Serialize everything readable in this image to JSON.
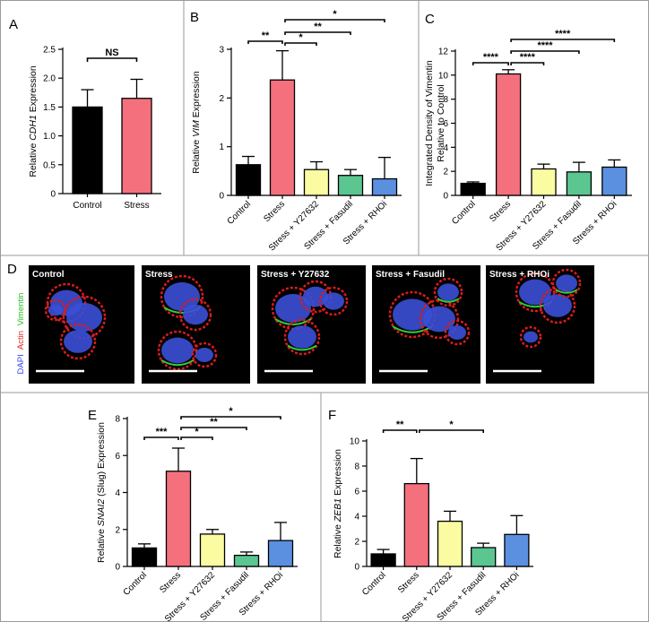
{
  "colors": {
    "control": "#000000",
    "stress": "#f4707d",
    "y27632": "#fbfba2",
    "fasudil": "#5bc690",
    "rhoi": "#5b8fe0"
  },
  "chart_data": [
    {
      "id": "A",
      "letter": "A",
      "type": "bar",
      "ylabel_prefix": "Relative ",
      "ylabel_italic": "CDH1",
      "ylabel_suffix": " Expression",
      "ylim": [
        0,
        2.5
      ],
      "yticks": [
        "0",
        "0.5",
        "1.0",
        "1.5",
        "2.0",
        "2.5"
      ],
      "yticks_values": [
        0,
        0.5,
        1.0,
        1.5,
        2.0,
        2.5
      ],
      "categories": [
        "Control",
        "Stress"
      ],
      "values": [
        1.5,
        1.65
      ],
      "errors": [
        0.3,
        0.33
      ],
      "colors": [
        "#000000",
        "#f4707d"
      ],
      "rotate_labels": false,
      "significance": [
        {
          "from": 0,
          "to": 1,
          "label": "NS"
        }
      ]
    },
    {
      "id": "B",
      "letter": "B",
      "type": "bar",
      "ylabel_prefix": "Relative ",
      "ylabel_italic": "VIM",
      "ylabel_suffix": " Expression",
      "ylim": [
        0,
        3
      ],
      "yticks": [
        "0",
        "1",
        "2",
        "3"
      ],
      "yticks_values": [
        0,
        1,
        2,
        3
      ],
      "categories": [
        "Control",
        "Stress",
        "Stress + Y27632",
        "Stress + Fasudil",
        "Stress + RHOi"
      ],
      "values": [
        0.63,
        2.37,
        0.53,
        0.41,
        0.34
      ],
      "errors": [
        0.17,
        0.6,
        0.16,
        0.12,
        0.44
      ],
      "colors": [
        "#000000",
        "#f4707d",
        "#fbfba2",
        "#5bc690",
        "#5b8fe0"
      ],
      "rotate_labels": true,
      "significance": [
        {
          "from": 0,
          "to": 1,
          "label": "**"
        },
        {
          "from": 1,
          "to": 2,
          "label": "*"
        },
        {
          "from": 1,
          "to": 3,
          "label": "**"
        },
        {
          "from": 1,
          "to": 4,
          "label": "*"
        }
      ]
    },
    {
      "id": "C",
      "letter": "C",
      "type": "bar",
      "ylabel_line1": "Integrated Density of Vimentin",
      "ylabel_line2": "Relative to Control",
      "ylim": [
        0,
        12
      ],
      "yticks": [
        "0",
        "2",
        "4",
        "6",
        "8",
        "10",
        "12"
      ],
      "yticks_values": [
        0,
        2,
        4,
        6,
        8,
        10,
        12
      ],
      "categories": [
        "Control",
        "Stress",
        "Stress + Y27632",
        "Stress + Fasudil",
        "Stress + RHOi"
      ],
      "values": [
        1.0,
        10.1,
        2.2,
        1.95,
        2.35
      ],
      "errors": [
        0.12,
        0.35,
        0.4,
        0.8,
        0.6
      ],
      "colors": [
        "#000000",
        "#f4707d",
        "#fbfba2",
        "#5bc690",
        "#5b8fe0"
      ],
      "rotate_labels": true,
      "significance": [
        {
          "from": 0,
          "to": 1,
          "label": "****"
        },
        {
          "from": 1,
          "to": 2,
          "label": "****"
        },
        {
          "from": 1,
          "to": 3,
          "label": "****"
        },
        {
          "from": 1,
          "to": 4,
          "label": "****"
        }
      ]
    },
    {
      "id": "E",
      "letter": "E",
      "type": "bar",
      "ylabel_prefix": "Relative ",
      "ylabel_italic": "SNAI2",
      "ylabel_suffix": " (Slug) Expression",
      "ylim": [
        0,
        8
      ],
      "yticks": [
        "0",
        "2",
        "4",
        "6",
        "8"
      ],
      "yticks_values": [
        0,
        2,
        4,
        6,
        8
      ],
      "categories": [
        "Control",
        "Stress",
        "Stress + Y27632",
        "Stress + Fasudil",
        "Stress + RHOi"
      ],
      "values": [
        1.0,
        5.15,
        1.75,
        0.6,
        1.4
      ],
      "errors": [
        0.22,
        1.25,
        0.25,
        0.18,
        0.98
      ],
      "colors": [
        "#000000",
        "#f4707d",
        "#fbfba2",
        "#5bc690",
        "#5b8fe0"
      ],
      "rotate_labels": true,
      "significance": [
        {
          "from": 0,
          "to": 1,
          "label": "***"
        },
        {
          "from": 1,
          "to": 2,
          "label": "*"
        },
        {
          "from": 1,
          "to": 3,
          "label": "**"
        },
        {
          "from": 1,
          "to": 4,
          "label": "*"
        }
      ]
    },
    {
      "id": "F",
      "letter": "F",
      "type": "bar",
      "ylabel_prefix": "Relative ",
      "ylabel_italic": "ZEB1",
      "ylabel_suffix": " Expression",
      "ylim": [
        0,
        10
      ],
      "yticks": [
        "0",
        "2",
        "4",
        "6",
        "8",
        "10"
      ],
      "yticks_values": [
        0,
        2,
        4,
        6,
        8,
        10
      ],
      "categories": [
        "Control",
        "Stress",
        "Stress + Y27632",
        "Stress + Fasudil",
        "Stress + RHOi"
      ],
      "values": [
        1.0,
        6.6,
        3.6,
        1.5,
        2.55
      ],
      "errors": [
        0.35,
        2.0,
        0.8,
        0.35,
        1.5
      ],
      "colors": [
        "#000000",
        "#f4707d",
        "#fbfba2",
        "#5bc690",
        "#5b8fe0"
      ],
      "rotate_labels": true,
      "significance": [
        {
          "from": 0,
          "to": 1,
          "label": "**"
        },
        {
          "from": 1,
          "to": 3,
          "label": "*"
        }
      ]
    }
  ],
  "panel_d": {
    "letter": "D",
    "stain_labels": [
      {
        "text": "DAPI",
        "color": "#3344ee"
      },
      {
        "text": "Actin",
        "color": "#ee2222"
      },
      {
        "text": "Vimentin",
        "color": "#22bb22"
      }
    ],
    "images": [
      {
        "label": "Control"
      },
      {
        "label": "Stress"
      },
      {
        "label": "Stress + Y27632"
      },
      {
        "label": "Stress + Fasudil"
      },
      {
        "label": "Stress + RHOi"
      }
    ]
  }
}
